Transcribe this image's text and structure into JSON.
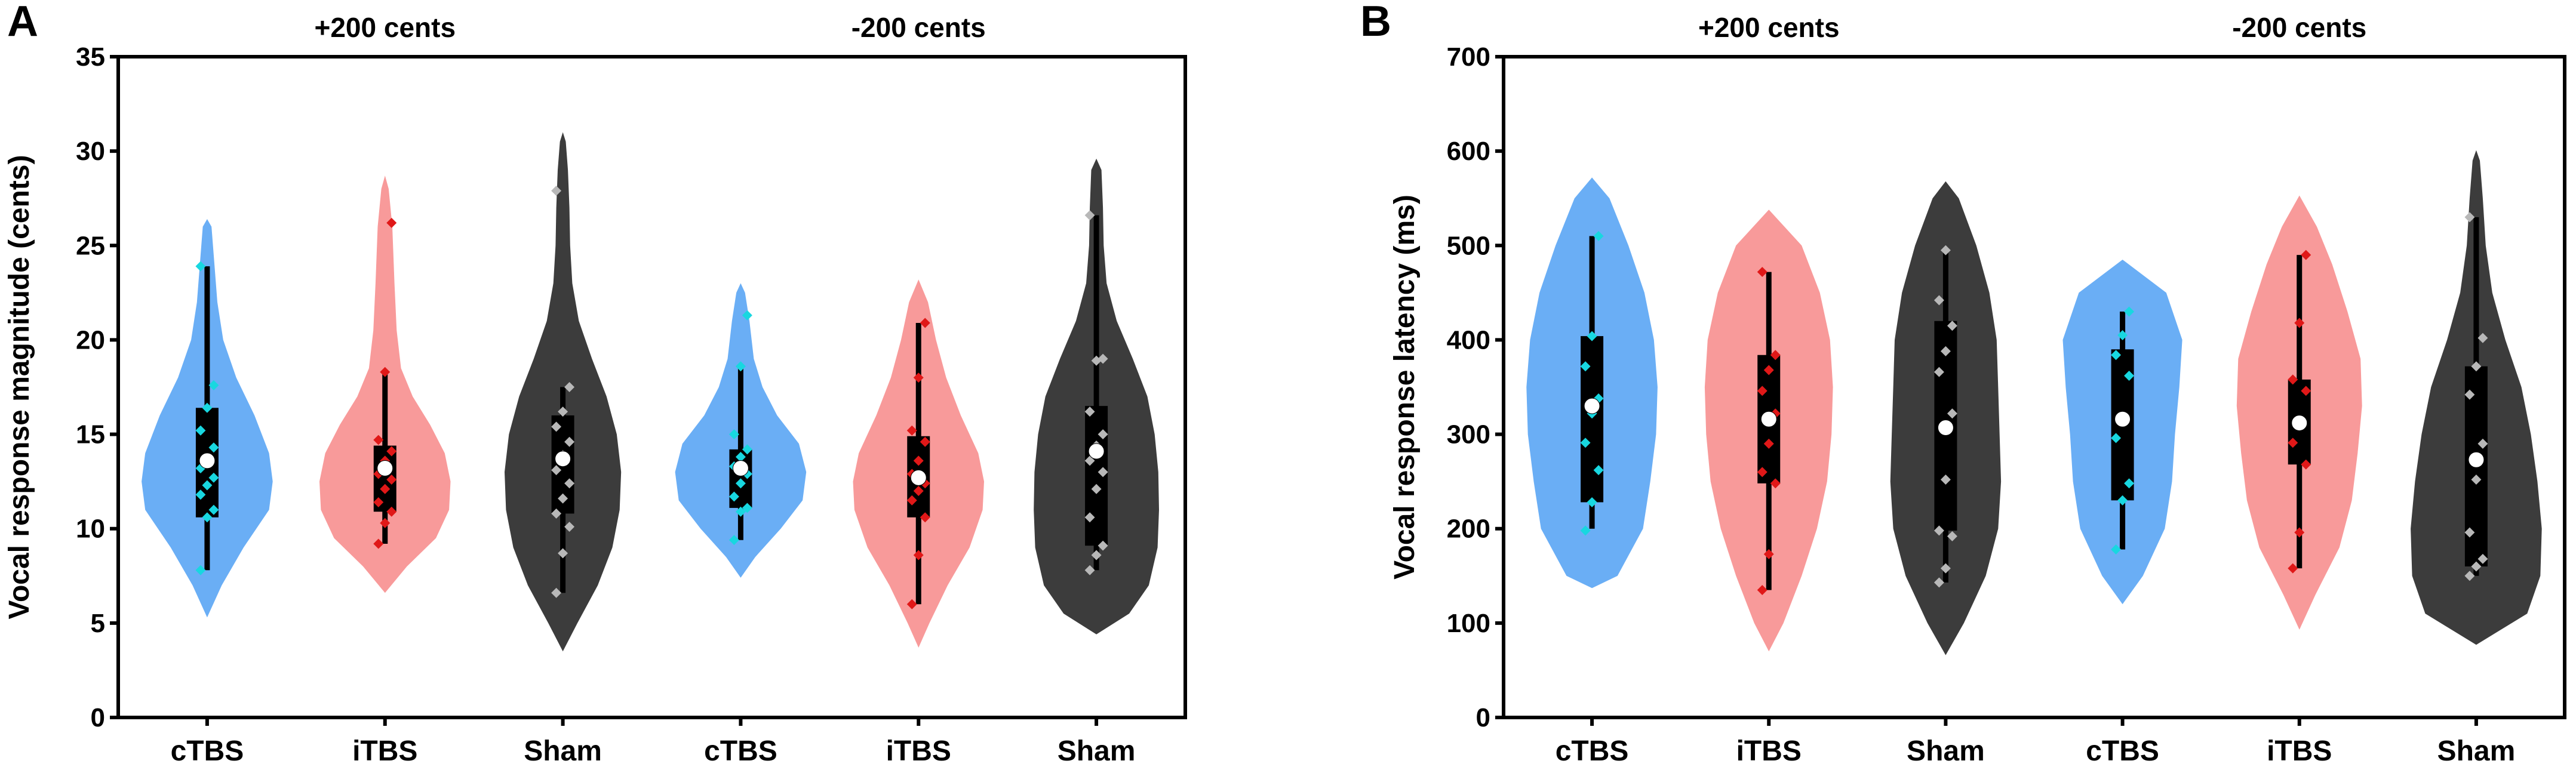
{
  "chart_data": [
    {
      "type": "violin",
      "panel": "A",
      "title": "",
      "xlabel": "",
      "ylabel": "Vocal response magnitude (cents)",
      "ylim": [
        0,
        35
      ],
      "yticks": [
        0,
        5,
        10,
        15,
        20,
        25,
        30,
        35
      ],
      "group_labels": [
        "+200 cents",
        "-200 cents"
      ],
      "categories": [
        "cTBS",
        "iTBS",
        "Sham",
        "cTBS",
        "iTBS",
        "Sham"
      ],
      "series": [
        {
          "name": "cTBS (+200 cents)",
          "color": "#6aaef5",
          "point_color": "#18d7e0",
          "violin": [
            [
              5.3,
              0
            ],
            [
              7,
              20
            ],
            [
              9,
              50
            ],
            [
              11,
              85
            ],
            [
              12.5,
              90
            ],
            [
              14,
              85
            ],
            [
              16,
              65
            ],
            [
              18,
              40
            ],
            [
              20,
              22
            ],
            [
              22,
              14
            ],
            [
              24,
              10
            ],
            [
              26,
              6
            ],
            [
              26.4,
              0
            ]
          ],
          "box": {
            "min": 7.8,
            "q1": 10.6,
            "median": 13.2,
            "q3": 16.4,
            "max": 23.9,
            "mean": 13.6
          },
          "points": [
            7.8,
            10.6,
            11.0,
            11.8,
            12.3,
            12.7,
            13.2,
            13.7,
            14.3,
            15.2,
            16.4,
            17.6,
            23.9
          ]
        },
        {
          "name": "iTBS (+200 cents)",
          "color": "#f89a9a",
          "point_color": "#e01818",
          "violin": [
            [
              6.6,
              0
            ],
            [
              8,
              30
            ],
            [
              9.5,
              70
            ],
            [
              11,
              88
            ],
            [
              12.5,
              90
            ],
            [
              14,
              82
            ],
            [
              15.5,
              62
            ],
            [
              17,
              38
            ],
            [
              18.5,
              22
            ],
            [
              20.5,
              16
            ],
            [
              23,
              13
            ],
            [
              26,
              10
            ],
            [
              28,
              5
            ],
            [
              28.7,
              0
            ]
          ],
          "box": {
            "min": 9.2,
            "q1": 10.9,
            "median": 12.6,
            "q3": 14.4,
            "max": 18.3,
            "mean": 13.2
          },
          "points": [
            9.2,
            10.3,
            10.9,
            11.4,
            12.1,
            12.6,
            12.9,
            13.6,
            14.1,
            14.7,
            18.3,
            26.2
          ]
        },
        {
          "name": "Sham (+200 cents)",
          "color": "#3c3c3c",
          "point_color": "#b8b8b8",
          "violin": [
            [
              3.5,
              0
            ],
            [
              5,
              20
            ],
            [
              7,
              48
            ],
            [
              9,
              68
            ],
            [
              11,
              78
            ],
            [
              13,
              80
            ],
            [
              15,
              74
            ],
            [
              17,
              60
            ],
            [
              19,
              40
            ],
            [
              21,
              22
            ],
            [
              23,
              13
            ],
            [
              25,
              10
            ],
            [
              27,
              9
            ],
            [
              29,
              7
            ],
            [
              30.5,
              4
            ],
            [
              31,
              0
            ]
          ],
          "box": {
            "min": 6.6,
            "q1": 10.8,
            "median": 13.6,
            "q3": 16.0,
            "max": 17.5,
            "mean": 13.7
          },
          "points": [
            6.6,
            8.7,
            10.1,
            10.8,
            11.6,
            12.4,
            13.1,
            13.9,
            14.6,
            15.4,
            16.2,
            17.5,
            27.9
          ]
        },
        {
          "name": "cTBS (-200 cents)",
          "color": "#6aaef5",
          "point_color": "#18d7e0",
          "violin": [
            [
              7.4,
              0
            ],
            [
              8.5,
              20
            ],
            [
              10,
              55
            ],
            [
              11.5,
              85
            ],
            [
              13,
              90
            ],
            [
              14.5,
              80
            ],
            [
              16,
              50
            ],
            [
              17.5,
              30
            ],
            [
              19,
              18
            ],
            [
              21,
              12
            ],
            [
              22.5,
              6
            ],
            [
              23,
              0
            ]
          ],
          "box": {
            "min": 9.4,
            "q1": 11.1,
            "median": 12.9,
            "q3": 14.2,
            "max": 18.6,
            "mean": 13.2
          },
          "points": [
            9.4,
            10.9,
            11.1,
            11.7,
            12.4,
            12.9,
            13.3,
            13.8,
            14.2,
            15.0,
            18.6,
            21.3
          ]
        },
        {
          "name": "iTBS (-200 cents)",
          "color": "#f89a9a",
          "point_color": "#e01818",
          "violin": [
            [
              3.7,
              0
            ],
            [
              5,
              15
            ],
            [
              7,
              40
            ],
            [
              9,
              70
            ],
            [
              11,
              88
            ],
            [
              12.5,
              90
            ],
            [
              14,
              82
            ],
            [
              16,
              58
            ],
            [
              18,
              38
            ],
            [
              20,
              24
            ],
            [
              22,
              13
            ],
            [
              23.2,
              0
            ]
          ],
          "box": {
            "min": 6.0,
            "q1": 10.6,
            "median": 12.4,
            "q3": 14.9,
            "max": 20.9,
            "mean": 12.7
          },
          "points": [
            6.0,
            8.6,
            10.6,
            11.5,
            12.0,
            12.4,
            12.9,
            13.6,
            14.6,
            15.2,
            18.0,
            20.9
          ]
        },
        {
          "name": "Sham (-200 cents)",
          "color": "#3c3c3c",
          "point_color": "#b8b8b8",
          "violin": [
            [
              4.4,
              0
            ],
            [
              5.5,
              45
            ],
            [
              7,
              72
            ],
            [
              9,
              84
            ],
            [
              11,
              86
            ],
            [
              13,
              85
            ],
            [
              15,
              80
            ],
            [
              17,
              70
            ],
            [
              19,
              50
            ],
            [
              21,
              28
            ],
            [
              23,
              14
            ],
            [
              25,
              10
            ],
            [
              27,
              9
            ],
            [
              29,
              7
            ],
            [
              29.6,
              0
            ]
          ],
          "box": {
            "min": 7.8,
            "q1": 9.1,
            "median": 13.6,
            "q3": 16.5,
            "max": 26.6,
            "mean": 14.1
          },
          "points": [
            7.8,
            8.6,
            9.1,
            10.6,
            12.1,
            13.0,
            13.6,
            14.4,
            15.0,
            16.2,
            18.9,
            19.0,
            26.6
          ]
        }
      ]
    },
    {
      "type": "violin",
      "panel": "B",
      "title": "",
      "xlabel": "",
      "ylabel": "Vocal response latency (ms)",
      "ylim": [
        0,
        700
      ],
      "yticks": [
        0,
        100,
        200,
        300,
        400,
        500,
        600,
        700
      ],
      "group_labels": [
        "+200 cents",
        "-200 cents"
      ],
      "categories": [
        "cTBS",
        "iTBS",
        "Sham",
        "cTBS",
        "iTBS",
        "Sham"
      ],
      "series": [
        {
          "name": "cTBS (+200 cents)",
          "color": "#6aaef5",
          "point_color": "#18d7e0",
          "violin": [
            [
              137,
              0
            ],
            [
              150,
              35
            ],
            [
              200,
              70
            ],
            [
              250,
              80
            ],
            [
              300,
              88
            ],
            [
              350,
              90
            ],
            [
              400,
              85
            ],
            [
              450,
              72
            ],
            [
              500,
              50
            ],
            [
              550,
              24
            ],
            [
              572,
              0
            ]
          ],
          "box": {
            "min": 200,
            "q1": 228,
            "median": 320,
            "q3": 404,
            "max": 510,
            "mean": 330
          },
          "points": [
            198,
            228,
            262,
            291,
            322,
            338,
            372,
            404,
            510
          ]
        },
        {
          "name": "iTBS (+200 cents)",
          "color": "#f89a9a",
          "point_color": "#e01818",
          "violin": [
            [
              70,
              0
            ],
            [
              100,
              20
            ],
            [
              150,
              45
            ],
            [
              200,
              66
            ],
            [
              250,
              80
            ],
            [
              300,
              86
            ],
            [
              350,
              88
            ],
            [
              400,
              84
            ],
            [
              450,
              70
            ],
            [
              500,
              45
            ],
            [
              538,
              0
            ]
          ],
          "box": {
            "min": 135,
            "q1": 248,
            "median": 322,
            "q3": 384,
            "max": 472,
            "mean": 316
          },
          "points": [
            135,
            173,
            248,
            260,
            290,
            322,
            346,
            368,
            384,
            472
          ]
        },
        {
          "name": "Sham (+200 cents)",
          "color": "#3c3c3c",
          "point_color": "#b8b8b8",
          "violin": [
            [
              66,
              0
            ],
            [
              100,
              25
            ],
            [
              150,
              55
            ],
            [
              200,
              72
            ],
            [
              250,
              76
            ],
            [
              300,
              74
            ],
            [
              350,
              72
            ],
            [
              400,
              70
            ],
            [
              450,
              60
            ],
            [
              500,
              42
            ],
            [
              550,
              18
            ],
            [
              568,
              0
            ]
          ],
          "box": {
            "min": 143,
            "q1": 198,
            "median": 322,
            "q3": 420,
            "max": 495,
            "mean": 307
          },
          "points": [
            143,
            158,
            192,
            198,
            252,
            322,
            366,
            388,
            415,
            442,
            495
          ]
        },
        {
          "name": "cTBS (-200 cents)",
          "color": "#6aaef5",
          "point_color": "#18d7e0",
          "violin": [
            [
              120,
              0
            ],
            [
              150,
              28
            ],
            [
              200,
              58
            ],
            [
              250,
              68
            ],
            [
              300,
              72
            ],
            [
              350,
              78
            ],
            [
              400,
              82
            ],
            [
              450,
              60
            ],
            [
              485,
              0
            ]
          ],
          "box": {
            "min": 178,
            "q1": 230,
            "median": 318,
            "q3": 390,
            "max": 430,
            "mean": 316
          },
          "points": [
            178,
            230,
            248,
            296,
            318,
            362,
            384,
            405,
            430
          ]
        },
        {
          "name": "iTBS (-200 cents)",
          "color": "#f89a9a",
          "point_color": "#e01818",
          "violin": [
            [
              93,
              0
            ],
            [
              130,
              22
            ],
            [
              180,
              55
            ],
            [
              230,
              72
            ],
            [
              280,
              80
            ],
            [
              330,
              86
            ],
            [
              380,
              84
            ],
            [
              430,
              66
            ],
            [
              480,
              45
            ],
            [
              520,
              24
            ],
            [
              553,
              0
            ]
          ],
          "box": {
            "min": 158,
            "q1": 268,
            "median": 312,
            "q3": 358,
            "max": 490,
            "mean": 312
          },
          "points": [
            158,
            196,
            268,
            291,
            312,
            346,
            358,
            418,
            490
          ]
        },
        {
          "name": "Sham (-200 cents)",
          "color": "#3c3c3c",
          "point_color": "#b8b8b8",
          "violin": [
            [
              77,
              0
            ],
            [
              110,
              70
            ],
            [
              150,
              88
            ],
            [
              200,
              90
            ],
            [
              250,
              84
            ],
            [
              300,
              75
            ],
            [
              350,
              62
            ],
            [
              400,
              40
            ],
            [
              450,
              22
            ],
            [
              500,
              13
            ],
            [
              550,
              9
            ],
            [
              590,
              5
            ],
            [
              601,
              0
            ]
          ],
          "box": {
            "min": 150,
            "q1": 160,
            "median": 290,
            "q3": 372,
            "max": 530,
            "mean": 273
          },
          "points": [
            150,
            160,
            168,
            196,
            252,
            290,
            342,
            372,
            402,
            530
          ]
        }
      ]
    }
  ]
}
